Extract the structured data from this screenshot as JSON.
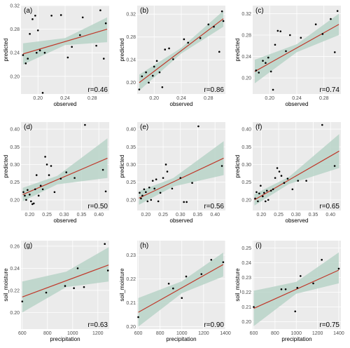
{
  "chart_data": [
    {
      "label": "(a)",
      "r_text": "r=0.46",
      "xlabel": "observed",
      "ylabel": "predicted",
      "xlim": [
        0.175,
        0.305
      ],
      "ylim": [
        0.17,
        0.32
      ],
      "xticks": [
        0.2,
        0.24,
        0.28
      ],
      "xtick_labels": [
        "0.20",
        "0.24",
        "0.28"
      ],
      "yticks": [
        0.2,
        0.24,
        0.28,
        0.32
      ],
      "ytick_labels": [
        "0.20",
        "0.24",
        "0.28",
        "0.32"
      ],
      "fit": [
        [
          0.178,
          0.238
        ],
        [
          0.302,
          0.28
        ]
      ],
      "band": [
        [
          0.178,
          0.22,
          0.256
        ],
        [
          0.24,
          0.253,
          0.265
        ],
        [
          0.302,
          0.258,
          0.3
        ]
      ],
      "points": [
        [
          0.178,
          0.236
        ],
        [
          0.182,
          0.222
        ],
        [
          0.185,
          0.23
        ],
        [
          0.188,
          0.272
        ],
        [
          0.192,
          0.297
        ],
        [
          0.196,
          0.303
        ],
        [
          0.198,
          0.24
        ],
        [
          0.2,
          0.278
        ],
        [
          0.203,
          0.244
        ],
        [
          0.207,
          0.172
        ],
        [
          0.21,
          0.24
        ],
        [
          0.22,
          0.303
        ],
        [
          0.234,
          0.304
        ],
        [
          0.244,
          0.232
        ],
        [
          0.25,
          0.25
        ],
        [
          0.262,
          0.27
        ],
        [
          0.266,
          0.3
        ],
        [
          0.286,
          0.252
        ],
        [
          0.292,
          0.312
        ],
        [
          0.297,
          0.23
        ],
        [
          0.3,
          0.29
        ]
      ]
    },
    {
      "label": "(b)",
      "r_text": "r=0.86",
      "xlabel": "observed",
      "ylabel": "predicted",
      "xlim": [
        0.175,
        0.305
      ],
      "ylim": [
        0.18,
        0.335
      ],
      "xticks": [
        0.2,
        0.24,
        0.28
      ],
      "xtick_labels": [
        "0.20",
        "0.24",
        "0.28"
      ],
      "yticks": [
        0.2,
        0.24,
        0.28,
        0.32
      ],
      "ytick_labels": [
        "0.20",
        "0.24",
        "0.28",
        "0.32"
      ],
      "fit": [
        [
          0.178,
          0.2
        ],
        [
          0.302,
          0.312
        ]
      ],
      "band": [
        [
          0.178,
          0.186,
          0.214
        ],
        [
          0.24,
          0.251,
          0.261
        ],
        [
          0.302,
          0.298,
          0.326
        ]
      ],
      "points": [
        [
          0.178,
          0.188
        ],
        [
          0.182,
          0.211
        ],
        [
          0.188,
          0.218
        ],
        [
          0.192,
          0.2
        ],
        [
          0.198,
          0.212
        ],
        [
          0.2,
          0.228
        ],
        [
          0.204,
          0.238
        ],
        [
          0.208,
          0.218
        ],
        [
          0.212,
          0.192
        ],
        [
          0.216,
          0.258
        ],
        [
          0.222,
          0.26
        ],
        [
          0.228,
          0.241
        ],
        [
          0.244,
          0.276
        ],
        [
          0.25,
          0.27
        ],
        [
          0.268,
          0.278
        ],
        [
          0.28,
          0.302
        ],
        [
          0.288,
          0.298
        ],
        [
          0.296,
          0.254
        ],
        [
          0.3,
          0.325
        ],
        [
          0.302,
          0.308
        ]
      ]
    },
    {
      "label": "(c)",
      "r_text": "r=0.74",
      "xlabel": "observed",
      "ylabel": "predicted",
      "xlim": [
        0.175,
        0.305
      ],
      "ylim": [
        0.17,
        0.335
      ],
      "xticks": [
        0.2,
        0.24,
        0.28
      ],
      "xtick_labels": [
        "0.20",
        "0.24",
        "0.28"
      ],
      "yticks": [
        0.2,
        0.24,
        0.28,
        0.32
      ],
      "ytick_labels": [
        "0.20",
        "0.24",
        "0.28",
        "0.32"
      ],
      "fit": [
        [
          0.178,
          0.212
        ],
        [
          0.302,
          0.3
        ]
      ],
      "band": [
        [
          0.178,
          0.19,
          0.234
        ],
        [
          0.24,
          0.248,
          0.263
        ],
        [
          0.302,
          0.28,
          0.32
        ]
      ],
      "points": [
        [
          0.18,
          0.214
        ],
        [
          0.184,
          0.21
        ],
        [
          0.19,
          0.232
        ],
        [
          0.194,
          0.228
        ],
        [
          0.198,
          0.238
        ],
        [
          0.202,
          0.212
        ],
        [
          0.205,
          0.178
        ],
        [
          0.208,
          0.262
        ],
        [
          0.212,
          0.288
        ],
        [
          0.216,
          0.287
        ],
        [
          0.224,
          0.25
        ],
        [
          0.23,
          0.28
        ],
        [
          0.246,
          0.275
        ],
        [
          0.268,
          0.3
        ],
        [
          0.278,
          0.282
        ],
        [
          0.29,
          0.31
        ],
        [
          0.296,
          0.248
        ],
        [
          0.3,
          0.325
        ]
      ]
    },
    {
      "label": "(d)",
      "r_text": "r=0.50",
      "xlabel": "observed",
      "ylabel": "predicted",
      "xlim": [
        0.175,
        0.43
      ],
      "ylim": [
        0.17,
        0.42
      ],
      "xticks": [
        0.2,
        0.25,
        0.3,
        0.35,
        0.4
      ],
      "xtick_labels": [
        "0.20",
        "0.25",
        "0.30",
        "0.35",
        "0.40"
      ],
      "yticks": [
        0.2,
        0.25,
        0.3,
        0.35,
        0.4
      ],
      "ytick_labels": [
        "0.20",
        "0.25",
        "0.30",
        "0.35",
        "0.40"
      ],
      "fit": [
        [
          0.18,
          0.215
        ],
        [
          0.425,
          0.318
        ]
      ],
      "band": [
        [
          0.18,
          0.196,
          0.234
        ],
        [
          0.28,
          0.244,
          0.268
        ],
        [
          0.425,
          0.262,
          0.374
        ]
      ],
      "points": [
        [
          0.182,
          0.222
        ],
        [
          0.186,
          0.212
        ],
        [
          0.19,
          0.2
        ],
        [
          0.194,
          0.228
        ],
        [
          0.2,
          0.215
        ],
        [
          0.204,
          0.196
        ],
        [
          0.208,
          0.188
        ],
        [
          0.212,
          0.19
        ],
        [
          0.216,
          0.23
        ],
        [
          0.22,
          0.27
        ],
        [
          0.226,
          0.212
        ],
        [
          0.232,
          0.24
        ],
        [
          0.238,
          0.23
        ],
        [
          0.245,
          0.322
        ],
        [
          0.25,
          0.3
        ],
        [
          0.256,
          0.27
        ],
        [
          0.262,
          0.296
        ],
        [
          0.272,
          0.222
        ],
        [
          0.29,
          0.26
        ],
        [
          0.306,
          0.278
        ],
        [
          0.33,
          0.262
        ],
        [
          0.36,
          0.412
        ],
        [
          0.412,
          0.285
        ],
        [
          0.42,
          0.224
        ]
      ]
    },
    {
      "label": "(e)",
      "r_text": "r=0.56",
      "xlabel": "observed",
      "ylabel": "predicted",
      "xlim": [
        0.175,
        0.43
      ],
      "ylim": [
        0.17,
        0.42
      ],
      "xticks": [
        0.2,
        0.25,
        0.3,
        0.35,
        0.4
      ],
      "xtick_labels": [
        "0.20",
        "0.25",
        "0.30",
        "0.35",
        "0.40"
      ],
      "yticks": [
        0.2,
        0.25,
        0.3,
        0.35,
        0.4
      ],
      "ytick_labels": [
        "0.20",
        "0.25",
        "0.30",
        "0.35",
        "0.40"
      ],
      "fit": [
        [
          0.18,
          0.205
        ],
        [
          0.425,
          0.318
        ]
      ],
      "band": [
        [
          0.18,
          0.186,
          0.224
        ],
        [
          0.28,
          0.238,
          0.262
        ],
        [
          0.425,
          0.27,
          0.366
        ]
      ],
      "points": [
        [
          0.182,
          0.22
        ],
        [
          0.186,
          0.204
        ],
        [
          0.19,
          0.212
        ],
        [
          0.195,
          0.23
        ],
        [
          0.2,
          0.222
        ],
        [
          0.205,
          0.196
        ],
        [
          0.21,
          0.235
        ],
        [
          0.215,
          0.2
        ],
        [
          0.22,
          0.254
        ],
        [
          0.225,
          0.232
        ],
        [
          0.23,
          0.258
        ],
        [
          0.236,
          0.196
        ],
        [
          0.242,
          0.22
        ],
        [
          0.25,
          0.262
        ],
        [
          0.258,
          0.3
        ],
        [
          0.262,
          0.28
        ],
        [
          0.276,
          0.232
        ],
        [
          0.3,
          0.262
        ],
        [
          0.31,
          0.194
        ],
        [
          0.318,
          0.194
        ],
        [
          0.334,
          0.248
        ],
        [
          0.352,
          0.408
        ],
        [
          0.42,
          0.296
        ]
      ]
    },
    {
      "label": "(f)",
      "r_text": "r=0.65",
      "xlabel": "observed",
      "ylabel": "predicted",
      "xlim": [
        0.175,
        0.43
      ],
      "ylim": [
        0.17,
        0.42
      ],
      "xticks": [
        0.2,
        0.25,
        0.3,
        0.35,
        0.4
      ],
      "xtick_labels": [
        "0.20",
        "0.25",
        "0.30",
        "0.35",
        "0.40"
      ],
      "yticks": [
        0.2,
        0.25,
        0.3,
        0.35,
        0.4
      ],
      "ytick_labels": [
        "0.20",
        "0.25",
        "0.30",
        "0.35",
        "0.40"
      ],
      "fit": [
        [
          0.18,
          0.2
        ],
        [
          0.425,
          0.338
        ]
      ],
      "band": [
        [
          0.18,
          0.184,
          0.216
        ],
        [
          0.28,
          0.245,
          0.265
        ],
        [
          0.425,
          0.29,
          0.386
        ]
      ],
      "points": [
        [
          0.182,
          0.204
        ],
        [
          0.186,
          0.222
        ],
        [
          0.19,
          0.196
        ],
        [
          0.194,
          0.218
        ],
        [
          0.198,
          0.24
        ],
        [
          0.204,
          0.21
        ],
        [
          0.208,
          0.22
        ],
        [
          0.212,
          0.196
        ],
        [
          0.216,
          0.226
        ],
        [
          0.22,
          0.2
        ],
        [
          0.228,
          0.226
        ],
        [
          0.234,
          0.23
        ],
        [
          0.24,
          0.262
        ],
        [
          0.246,
          0.29
        ],
        [
          0.252,
          0.28
        ],
        [
          0.258,
          0.268
        ],
        [
          0.266,
          0.248
        ],
        [
          0.276,
          0.26
        ],
        [
          0.29,
          0.23
        ],
        [
          0.306,
          0.254
        ],
        [
          0.33,
          0.254
        ],
        [
          0.376,
          0.412
        ],
        [
          0.412,
          0.296
        ]
      ]
    },
    {
      "label": "(g)",
      "r_text": "r=0.63",
      "xlabel": "precipitation",
      "ylabel": "soil_moisture",
      "xlim": [
        590,
        1290
      ],
      "ylim": [
        0.185,
        0.265
      ],
      "xticks": [
        600,
        800,
        1000,
        1200
      ],
      "xtick_labels": [
        "600",
        "800",
        "1000",
        "1200"
      ],
      "yticks": [
        0.2,
        0.22,
        0.24,
        0.26
      ],
      "ytick_labels": [
        "0.20",
        "0.22",
        "0.24",
        "0.26"
      ],
      "fit": [
        [
          600,
          0.214
        ],
        [
          1285,
          0.243
        ]
      ],
      "band": [
        [
          600,
          0.2,
          0.228
        ],
        [
          950,
          0.223,
          0.237
        ],
        [
          1285,
          0.228,
          0.259
        ]
      ],
      "points": [
        [
          600,
          0.21
        ],
        [
          790,
          0.218
        ],
        [
          940,
          0.224
        ],
        [
          1010,
          0.222
        ],
        [
          1040,
          0.24
        ],
        [
          1090,
          0.223
        ],
        [
          1255,
          0.262
        ],
        [
          1280,
          0.238
        ]
      ]
    },
    {
      "label": "(h)",
      "r_text": "r=0.90",
      "xlabel": "precipitation",
      "ylabel": "soil_moisture",
      "xlim": [
        590,
        1400
      ],
      "ylim": [
        0.199,
        0.236
      ],
      "xticks": [
        600,
        800,
        1000,
        1200,
        1400
      ],
      "xtick_labels": [
        "600",
        "800",
        "1000",
        "1200",
        "1400"
      ],
      "yticks": [
        0.2,
        0.21,
        0.22,
        0.23
      ],
      "ytick_labels": [
        "0.20",
        "0.21",
        "0.22",
        "0.23"
      ],
      "fit": [
        [
          600,
          0.206
        ],
        [
          1380,
          0.226
        ]
      ],
      "band": [
        [
          600,
          0.2,
          0.212
        ],
        [
          1000,
          0.214,
          0.219
        ],
        [
          1380,
          0.221,
          0.231
        ]
      ],
      "points": [
        [
          600,
          0.204
        ],
        [
          880,
          0.218
        ],
        [
          920,
          0.216
        ],
        [
          1000,
          0.212
        ],
        [
          1040,
          0.221
        ],
        [
          1180,
          0.222
        ],
        [
          1270,
          0.228
        ],
        [
          1380,
          0.227
        ]
      ]
    },
    {
      "label": "(i)",
      "r_text": "r=0.75",
      "xlabel": "precipitation",
      "ylabel": "soil_moisture",
      "xlim": [
        590,
        1420
      ],
      "ylim": [
        0.195,
        0.255
      ],
      "xticks": [
        600,
        800,
        1000,
        1200,
        1400
      ],
      "xtick_labels": [
        "600",
        "800",
        "1000",
        "1200",
        "1400"
      ],
      "yticks": [
        0.2,
        0.21,
        0.22,
        0.23,
        0.24,
        0.25
      ],
      "ytick_labels": [
        "0.20",
        "0.21",
        "0.22",
        "0.23",
        "0.24",
        "0.25"
      ],
      "fit": [
        [
          600,
          0.209
        ],
        [
          1400,
          0.235
        ]
      ],
      "band": [
        [
          600,
          0.197,
          0.221
        ],
        [
          1000,
          0.219,
          0.227
        ],
        [
          1400,
          0.226,
          0.247
        ]
      ],
      "points": [
        [
          600,
          0.21
        ],
        [
          860,
          0.222
        ],
        [
          900,
          0.222
        ],
        [
          990,
          0.207
        ],
        [
          1010,
          0.223
        ],
        [
          1040,
          0.231
        ],
        [
          1160,
          0.226
        ],
        [
          1240,
          0.242
        ],
        [
          1400,
          0.236
        ]
      ]
    }
  ]
}
